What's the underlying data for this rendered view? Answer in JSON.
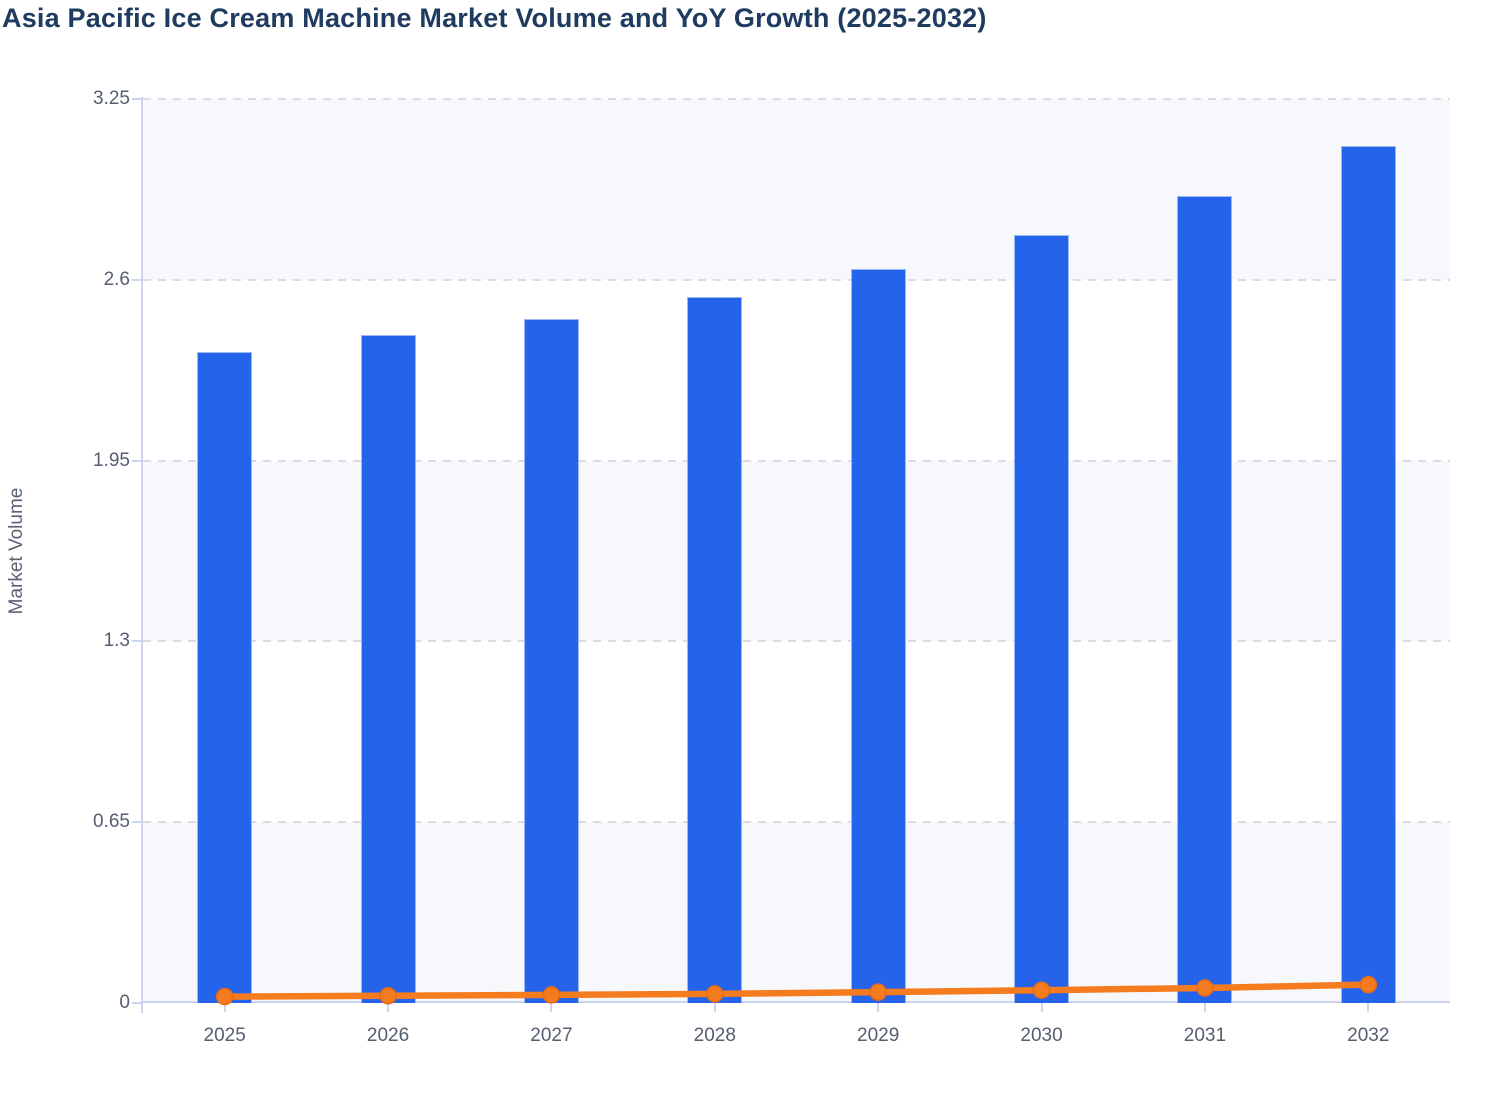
{
  "chart_data": {
    "type": "bar",
    "title": "Asia Pacific Ice Cream Machine Market Volume and YoY Growth (2025-2032)",
    "ylabel": "Market Volume",
    "xlabel": "",
    "categories": [
      "2025",
      "2026",
      "2027",
      "2028",
      "2029",
      "2030",
      "2031",
      "2032"
    ],
    "series": [
      {
        "name": "Market Volume",
        "type": "bar",
        "color": "#2563eb",
        "values": [
          2.34,
          2.4,
          2.46,
          2.54,
          2.64,
          2.76,
          2.9,
          3.08
        ]
      },
      {
        "name": "YoY Growth",
        "type": "line",
        "color": "#f57b1f",
        "marker_stroke": "#ea6c10",
        "values": [
          0.023,
          0.026,
          0.029,
          0.033,
          0.039,
          0.046,
          0.054,
          0.066
        ]
      }
    ],
    "ylim": [
      0,
      3.25
    ],
    "yticks": [
      0,
      0.65,
      1.3,
      1.95,
      2.6,
      3.25
    ],
    "ytick_labels": [
      "0",
      "0.65",
      "1.3",
      "1.95",
      "2.6",
      "3.25"
    ],
    "grid": true,
    "gridline_style": "dashed",
    "legend": "none",
    "band_colors": [
      "#f7f8fc",
      "#ffffff"
    ],
    "axis_color": "#ccd5ef",
    "gridline_color": "#d9dce4",
    "tick_label_color": "#555e6f",
    "title_color": "#1f3b60"
  }
}
